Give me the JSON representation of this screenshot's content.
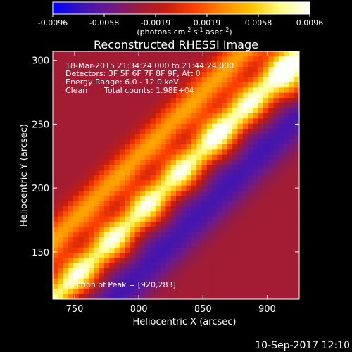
{
  "chart_data": {
    "type": "heatmap",
    "title": "Reconstructed RHESSI Image",
    "xlabel": "Heliocentric X (arcsec)",
    "ylabel": "Heliocentric Y (arcsec)",
    "xlim": [
      733,
      925
    ],
    "ylim": [
      113,
      307
    ],
    "xticks": [
      750,
      800,
      850,
      900
    ],
    "yticks": [
      150,
      200,
      250,
      300
    ],
    "colorbar": {
      "range": [
        -0.0096,
        0.0096
      ],
      "ticks": [
        "-0.0096",
        "-0.0058",
        "-0.0019",
        "0.0019",
        "0.0058",
        "0.0096"
      ],
      "label_main": "(photons cm",
      "label_exp1": "-2",
      "label_s": " s",
      "label_exp2": "-1",
      "label_asec": " asec",
      "label_exp3": "-2",
      "label_close": ")",
      "colors": [
        "#0000ff",
        "#3a14b8",
        "#6a1a8a",
        "#9a1c3c",
        "#c81e0e",
        "#ff4400",
        "#ff8c00",
        "#ffc800",
        "#ffff88",
        "#ffffff"
      ]
    },
    "annotations": {
      "time_range": "18-Mar-2015 21:34:24.000 to 21:44:24.000",
      "detectors": "Detectors: 3F 5F 6F 7F 8F 9F, Att 0",
      "energy": "Energy Range: 6.0 - 12.0 keV",
      "clean": "Clean",
      "counts": "Total counts: 1.98E+04",
      "peak": "Position of Peak = [920,283]"
    },
    "peak": [
      920,
      283
    ],
    "bands": [
      {
        "description": "bright central ridge",
        "offset_arcsec": 0,
        "value": 0.0084
      },
      {
        "description": "secondary ridge (upper-left)",
        "offset_arcsec": -45,
        "value": 0.004
      },
      {
        "description": "negative trough (lower-right)",
        "offset_arcsec": 48,
        "value": -0.007
      }
    ]
  },
  "footer": {
    "timestamp": "10-Sep-2017 12:10"
  },
  "colors": {
    "background": "#000000",
    "text": "#ffffff"
  }
}
